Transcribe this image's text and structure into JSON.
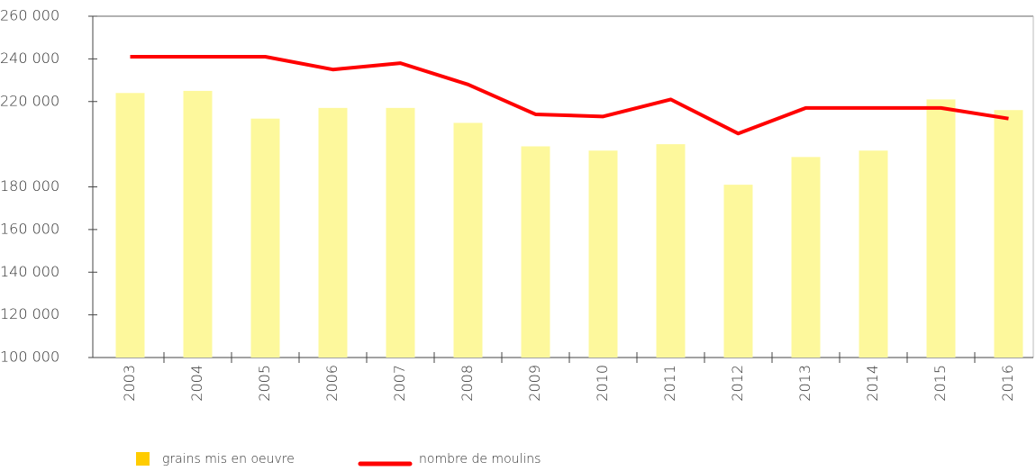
{
  "chart_data": {
    "type": "bar",
    "categories": [
      "2003",
      "2004",
      "2005",
      "2006",
      "2007",
      "2008",
      "2009",
      "2010",
      "2011",
      "2012",
      "2013",
      "2014",
      "2015",
      "2016"
    ],
    "series": [
      {
        "name": "grains mis en oeuvre",
        "type": "bar",
        "color": "#fdf89c",
        "legend_color": "#ffcc00",
        "values": [
          224000,
          225000,
          212000,
          217000,
          217000,
          210000,
          199000,
          197000,
          200000,
          181000,
          194000,
          197000,
          221000,
          216000
        ]
      },
      {
        "name": "nombre de moulins",
        "type": "line",
        "color": "#ff0000",
        "values": [
          241000,
          241000,
          241000,
          235000,
          238000,
          228000,
          214000,
          213000,
          221000,
          205000,
          217000,
          217000,
          217000,
          212000
        ]
      }
    ],
    "ylim": [
      100000,
      260000
    ],
    "yticks": [
      {
        "value": 260000,
        "label": "260 000"
      },
      {
        "value": 240000,
        "label": "240 000"
      },
      {
        "value": 220000,
        "label": "220 000"
      },
      {
        "value": 180000,
        "label": "180 000"
      },
      {
        "value": 160000,
        "label": "160 000"
      },
      {
        "value": 140000,
        "label": "140 000"
      },
      {
        "value": 120000,
        "label": "120 000"
      },
      {
        "value": 100000,
        "label": "100 000"
      }
    ],
    "grid": false
  }
}
